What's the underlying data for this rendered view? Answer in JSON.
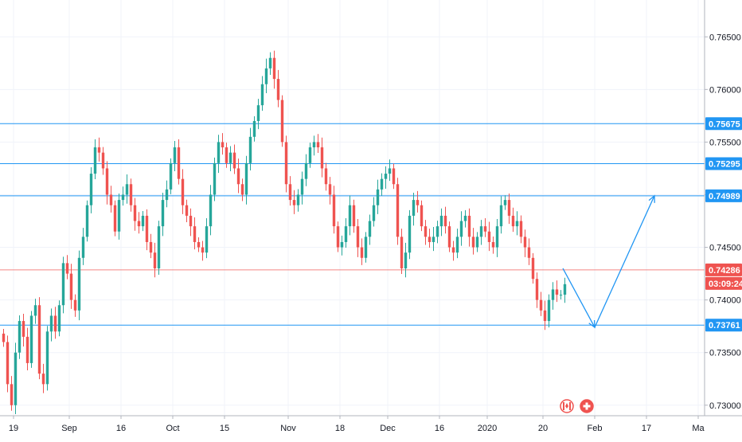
{
  "chart_data": {
    "type": "candlestick",
    "y_axis": {
      "range": [
        0.729,
        0.7685
      ],
      "ticks": [
        "0.76500",
        "0.76000",
        "0.75500",
        "0.75000",
        "0.74500",
        "0.74000",
        "0.73500",
        "0.73000"
      ],
      "tick_values": [
        0.765,
        0.76,
        0.755,
        0.75,
        0.745,
        0.74,
        0.735,
        0.73
      ]
    },
    "x_axis": {
      "ticks": [
        "19",
        "Sep",
        "16",
        "Oct",
        "15",
        "Nov",
        "18",
        "Dec",
        "16",
        "2020",
        "20",
        "Feb",
        "17",
        "Ma"
      ],
      "tick_bar_index": [
        3,
        17,
        30,
        43,
        56,
        72,
        85,
        97,
        110,
        122,
        136,
        149,
        162,
        175
      ]
    },
    "horizontal_levels": [
      {
        "value": 0.75675,
        "label": "0.75675",
        "color": "#2196f3"
      },
      {
        "value": 0.75295,
        "label": "0.75295",
        "color": "#2196f3"
      },
      {
        "value": 0.74989,
        "label": "0.74989",
        "color": "#2196f3"
      },
      {
        "value": 0.73761,
        "label": "0.73761",
        "color": "#2196f3"
      }
    ],
    "current_price": {
      "value": 0.74286,
      "label": "0.74286",
      "countdown": "03:09:24",
      "color": "#ef5350"
    },
    "projection_path": [
      {
        "bar": 141,
        "value": 0.743
      },
      {
        "bar": 149,
        "value": 0.7374
      },
      {
        "bar": 164,
        "value": 0.7499
      }
    ],
    "candle_colors": {
      "up": "#26a69a",
      "down": "#ef5350"
    },
    "close_series": [
      0.736,
      0.732,
      0.73,
      0.735,
      0.738,
      0.7365,
      0.734,
      0.7385,
      0.7395,
      0.733,
      0.732,
      0.737,
      0.7385,
      0.737,
      0.7395,
      0.7435,
      0.7425,
      0.74,
      0.739,
      0.744,
      0.746,
      0.749,
      0.752,
      0.7545,
      0.754,
      0.7525,
      0.75,
      0.749,
      0.7465,
      0.7495,
      0.75,
      0.751,
      0.749,
      0.7475,
      0.747,
      0.748,
      0.7455,
      0.7445,
      0.743,
      0.747,
      0.7495,
      0.7505,
      0.753,
      0.7545,
      0.7515,
      0.749,
      0.748,
      0.747,
      0.7455,
      0.745,
      0.7445,
      0.747,
      0.75,
      0.753,
      0.755,
      0.7545,
      0.753,
      0.754,
      0.7525,
      0.751,
      0.75,
      0.753,
      0.7555,
      0.757,
      0.7585,
      0.7605,
      0.762,
      0.763,
      0.761,
      0.759,
      0.755,
      0.751,
      0.7495,
      0.749,
      0.75,
      0.7515,
      0.753,
      0.7545,
      0.755,
      0.7545,
      0.7525,
      0.751,
      0.75,
      0.747,
      0.745,
      0.7455,
      0.747,
      0.749,
      0.747,
      0.745,
      0.744,
      0.746,
      0.7475,
      0.749,
      0.7505,
      0.7515,
      0.752,
      0.7525,
      0.751,
      0.746,
      0.743,
      0.7445,
      0.748,
      0.7495,
      0.749,
      0.747,
      0.746,
      0.7455,
      0.746,
      0.747,
      0.748,
      0.747,
      0.745,
      0.7445,
      0.746,
      0.7475,
      0.748,
      0.746,
      0.745,
      0.746,
      0.747,
      0.7465,
      0.7455,
      0.745,
      0.747,
      0.749,
      0.7495,
      0.748,
      0.747,
      0.7475,
      0.746,
      0.745,
      0.744,
      0.742,
      0.74,
      0.739,
      0.738,
      0.74,
      0.741,
      0.7405,
      0.7405,
      0.7415
    ]
  },
  "icons": {
    "flag_ca": "canada-flag-icon",
    "flag_ch": "switzerland-flag-icon"
  },
  "colors": {
    "grid": "#f0f3fa",
    "axis_border": "#b2b5be",
    "level_line": "#2196f3",
    "price_line": "#ef5350"
  }
}
